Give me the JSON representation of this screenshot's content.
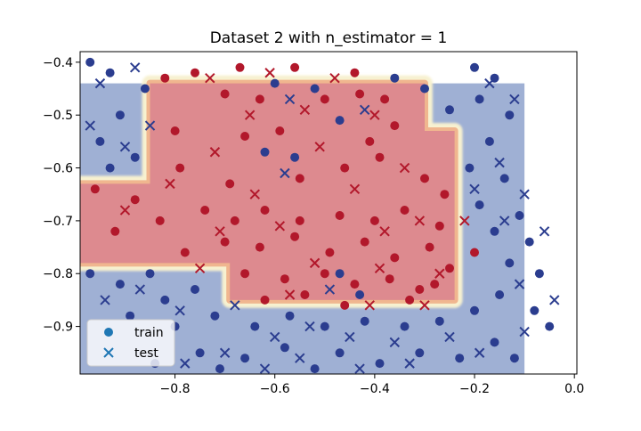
{
  "chart_data": {
    "type": "scatter",
    "title": "Dataset 2 with n_estimator = 1",
    "xlabel": "",
    "ylabel": "",
    "xlim": [
      -0.99,
      0.005
    ],
    "ylim": [
      -0.99,
      -0.38
    ],
    "xticks": [
      -0.8,
      -0.6,
      -0.4,
      -0.2,
      0.0
    ],
    "xtick_labels": [
      "−0.8",
      "−0.6",
      "−0.4",
      "−0.2",
      "0.0"
    ],
    "yticks": [
      -0.4,
      -0.5,
      -0.6,
      -0.7,
      -0.8,
      -0.9
    ],
    "ytick_labels": [
      "−0.4",
      "−0.5",
      "−0.6",
      "−0.7",
      "−0.8",
      "−0.9"
    ],
    "legend": {
      "placement": "lower-left",
      "entries": [
        {
          "label": "train",
          "marker": "circle",
          "color": "#1f77b4"
        },
        {
          "label": "test",
          "marker": "x",
          "color": "#1f77b4"
        }
      ]
    },
    "colors": {
      "class_a": "#b2182b",
      "class_b": "#2b3d8f",
      "region_a": "#dd8a8f",
      "region_b": "#9fb0d4",
      "boundary_light": "#f7f1d0"
    },
    "decision_region": {
      "class_a_polygon": [
        [
          -0.85,
          -0.44
        ],
        [
          -0.3,
          -0.44
        ],
        [
          -0.3,
          -0.53
        ],
        [
          -0.24,
          -0.53
        ],
        [
          -0.24,
          -0.85
        ],
        [
          -0.69,
          -0.85
        ],
        [
          -0.69,
          -0.78
        ],
        [
          -0.99,
          -0.78
        ],
        [
          -0.99,
          -0.63
        ],
        [
          -0.85,
          -0.63
        ],
        [
          -0.85,
          -0.56
        ]
      ],
      "class_b_region": {
        "x": [
          -0.99,
          -0.1
        ],
        "y": [
          -0.99,
          -0.44
        ]
      }
    },
    "series": [
      {
        "name": "train",
        "marker": "circle",
        "points": [
          [
            -0.82,
            -0.43,
            1
          ],
          [
            -0.76,
            -0.42,
            1
          ],
          [
            -0.67,
            -0.41,
            1
          ],
          [
            -0.56,
            -0.41,
            1
          ],
          [
            -0.44,
            -0.42,
            1
          ],
          [
            -0.7,
            -0.46,
            1
          ],
          [
            -0.63,
            -0.47,
            1
          ],
          [
            -0.5,
            -0.47,
            1
          ],
          [
            -0.43,
            -0.46,
            1
          ],
          [
            -0.38,
            -0.47,
            1
          ],
          [
            -0.8,
            -0.53,
            1
          ],
          [
            -0.66,
            -0.54,
            1
          ],
          [
            -0.59,
            -0.53,
            1
          ],
          [
            -0.41,
            -0.55,
            1
          ],
          [
            -0.36,
            -0.52,
            1
          ],
          [
            -0.79,
            -0.6,
            1
          ],
          [
            -0.69,
            -0.63,
            1
          ],
          [
            -0.55,
            -0.62,
            1
          ],
          [
            -0.46,
            -0.6,
            1
          ],
          [
            -0.39,
            -0.58,
            1
          ],
          [
            -0.3,
            -0.62,
            1
          ],
          [
            -0.26,
            -0.65,
            1
          ],
          [
            -0.96,
            -0.64,
            1
          ],
          [
            -0.88,
            -0.66,
            1
          ],
          [
            -0.83,
            -0.7,
            1
          ],
          [
            -0.74,
            -0.68,
            1
          ],
          [
            -0.68,
            -0.7,
            1
          ],
          [
            -0.62,
            -0.68,
            1
          ],
          [
            -0.55,
            -0.7,
            1
          ],
          [
            -0.47,
            -0.69,
            1
          ],
          [
            -0.4,
            -0.7,
            1
          ],
          [
            -0.34,
            -0.68,
            1
          ],
          [
            -0.27,
            -0.71,
            1
          ],
          [
            -0.92,
            -0.72,
            1
          ],
          [
            -0.78,
            -0.76,
            1
          ],
          [
            -0.7,
            -0.74,
            1
          ],
          [
            -0.63,
            -0.75,
            1
          ],
          [
            -0.56,
            -0.73,
            1
          ],
          [
            -0.49,
            -0.76,
            1
          ],
          [
            -0.42,
            -0.74,
            1
          ],
          [
            -0.36,
            -0.77,
            1
          ],
          [
            -0.29,
            -0.75,
            1
          ],
          [
            -0.25,
            -0.79,
            1
          ],
          [
            -0.66,
            -0.8,
            1
          ],
          [
            -0.58,
            -0.81,
            1
          ],
          [
            -0.5,
            -0.8,
            1
          ],
          [
            -0.44,
            -0.82,
            1
          ],
          [
            -0.37,
            -0.81,
            1
          ],
          [
            -0.31,
            -0.83,
            1
          ],
          [
            -0.62,
            -0.85,
            1
          ],
          [
            -0.54,
            -0.84,
            1
          ],
          [
            -0.46,
            -0.86,
            1
          ],
          [
            -0.33,
            -0.85,
            1
          ],
          [
            -0.28,
            -0.82,
            1
          ],
          [
            -0.2,
            -0.76,
            1
          ],
          [
            -0.97,
            -0.4,
            0
          ],
          [
            -0.93,
            -0.42,
            0
          ],
          [
            -0.86,
            -0.45,
            0
          ],
          [
            -0.91,
            -0.5,
            0
          ],
          [
            -0.95,
            -0.55,
            0
          ],
          [
            -0.88,
            -0.58,
            0
          ],
          [
            -0.93,
            -0.6,
            0
          ],
          [
            -0.6,
            -0.44,
            0
          ],
          [
            -0.52,
            -0.45,
            0
          ],
          [
            -0.47,
            -0.51,
            0
          ],
          [
            -0.36,
            -0.43,
            0
          ],
          [
            -0.2,
            -0.41,
            0
          ],
          [
            -0.16,
            -0.43,
            0
          ],
          [
            -0.19,
            -0.47,
            0
          ],
          [
            -0.13,
            -0.5,
            0
          ],
          [
            -0.17,
            -0.55,
            0
          ],
          [
            -0.21,
            -0.6,
            0
          ],
          [
            -0.14,
            -0.62,
            0
          ],
          [
            -0.19,
            -0.67,
            0
          ],
          [
            -0.11,
            -0.69,
            0
          ],
          [
            -0.16,
            -0.72,
            0
          ],
          [
            -0.09,
            -0.74,
            0
          ],
          [
            -0.13,
            -0.78,
            0
          ],
          [
            -0.07,
            -0.8,
            0
          ],
          [
            -0.15,
            -0.84,
            0
          ],
          [
            -0.08,
            -0.87,
            0
          ],
          [
            -0.2,
            -0.87,
            0
          ],
          [
            -0.05,
            -0.9,
            0
          ],
          [
            -0.97,
            -0.8,
            0
          ],
          [
            -0.91,
            -0.82,
            0
          ],
          [
            -0.85,
            -0.8,
            0
          ],
          [
            -0.82,
            -0.85,
            0
          ],
          [
            -0.76,
            -0.83,
            0
          ],
          [
            -0.89,
            -0.88,
            0
          ],
          [
            -0.8,
            -0.9,
            0
          ],
          [
            -0.72,
            -0.88,
            0
          ],
          [
            -0.64,
            -0.9,
            0
          ],
          [
            -0.57,
            -0.88,
            0
          ],
          [
            -0.5,
            -0.9,
            0
          ],
          [
            -0.42,
            -0.89,
            0
          ],
          [
            -0.34,
            -0.9,
            0
          ],
          [
            -0.27,
            -0.89,
            0
          ],
          [
            -0.75,
            -0.95,
            0
          ],
          [
            -0.66,
            -0.96,
            0
          ],
          [
            -0.58,
            -0.94,
            0
          ],
          [
            -0.47,
            -0.95,
            0
          ],
          [
            -0.39,
            -0.97,
            0
          ],
          [
            -0.31,
            -0.95,
            0
          ],
          [
            -0.23,
            -0.96,
            0
          ],
          [
            -0.16,
            -0.93,
            0
          ],
          [
            -0.62,
            -0.57,
            0
          ],
          [
            -0.56,
            -0.58,
            0
          ],
          [
            -0.47,
            -0.8,
            0
          ],
          [
            -0.43,
            -0.84,
            0
          ],
          [
            -0.84,
            -0.97,
            0
          ],
          [
            -0.71,
            -0.98,
            0
          ],
          [
            -0.52,
            -0.98,
            0
          ],
          [
            -0.12,
            -0.96,
            0
          ],
          [
            -0.3,
            -0.45,
            0
          ],
          [
            -0.25,
            -0.49,
            0
          ]
        ]
      },
      {
        "name": "test",
        "marker": "x",
        "points": [
          [
            -0.73,
            -0.43,
            1
          ],
          [
            -0.61,
            -0.42,
            1
          ],
          [
            -0.48,
            -0.43,
            1
          ],
          [
            -0.65,
            -0.5,
            1
          ],
          [
            -0.54,
            -0.49,
            1
          ],
          [
            -0.4,
            -0.5,
            1
          ],
          [
            -0.72,
            -0.57,
            1
          ],
          [
            -0.51,
            -0.56,
            1
          ],
          [
            -0.34,
            -0.6,
            1
          ],
          [
            -0.81,
            -0.63,
            1
          ],
          [
            -0.64,
            -0.65,
            1
          ],
          [
            -0.44,
            -0.64,
            1
          ],
          [
            -0.9,
            -0.68,
            1
          ],
          [
            -0.71,
            -0.72,
            1
          ],
          [
            -0.59,
            -0.71,
            1
          ],
          [
            -0.38,
            -0.72,
            1
          ],
          [
            -0.31,
            -0.7,
            1
          ],
          [
            -0.75,
            -0.79,
            1
          ],
          [
            -0.52,
            -0.78,
            1
          ],
          [
            -0.39,
            -0.79,
            1
          ],
          [
            -0.27,
            -0.8,
            1
          ],
          [
            -0.57,
            -0.84,
            1
          ],
          [
            -0.41,
            -0.86,
            1
          ],
          [
            -0.3,
            -0.86,
            1
          ],
          [
            -0.22,
            -0.7,
            1
          ],
          [
            -0.95,
            -0.44,
            0
          ],
          [
            -0.88,
            -0.41,
            0
          ],
          [
            -0.97,
            -0.52,
            0
          ],
          [
            -0.9,
            -0.56,
            0
          ],
          [
            -0.85,
            -0.52,
            0
          ],
          [
            -0.57,
            -0.47,
            0
          ],
          [
            -0.42,
            -0.49,
            0
          ],
          [
            -0.17,
            -0.44,
            0
          ],
          [
            -0.12,
            -0.47,
            0
          ],
          [
            -0.15,
            -0.59,
            0
          ],
          [
            -0.2,
            -0.64,
            0
          ],
          [
            -0.1,
            -0.65,
            0
          ],
          [
            -0.14,
            -0.7,
            0
          ],
          [
            -0.06,
            -0.72,
            0
          ],
          [
            -0.11,
            -0.82,
            0
          ],
          [
            -0.04,
            -0.85,
            0
          ],
          [
            -0.1,
            -0.91,
            0
          ],
          [
            -0.94,
            -0.85,
            0
          ],
          [
            -0.87,
            -0.83,
            0
          ],
          [
            -0.79,
            -0.87,
            0
          ],
          [
            -0.68,
            -0.86,
            0
          ],
          [
            -0.6,
            -0.92,
            0
          ],
          [
            -0.53,
            -0.9,
            0
          ],
          [
            -0.45,
            -0.92,
            0
          ],
          [
            -0.36,
            -0.93,
            0
          ],
          [
            -0.25,
            -0.92,
            0
          ],
          [
            -0.7,
            -0.95,
            0
          ],
          [
            -0.55,
            -0.96,
            0
          ],
          [
            -0.43,
            -0.98,
            0
          ],
          [
            -0.33,
            -0.97,
            0
          ],
          [
            -0.19,
            -0.95,
            0
          ],
          [
            -0.78,
            -0.97,
            0
          ],
          [
            -0.62,
            -0.98,
            0
          ],
          [
            -0.49,
            -0.83,
            0
          ],
          [
            -0.58,
            -0.61,
            0
          ]
        ]
      }
    ]
  }
}
